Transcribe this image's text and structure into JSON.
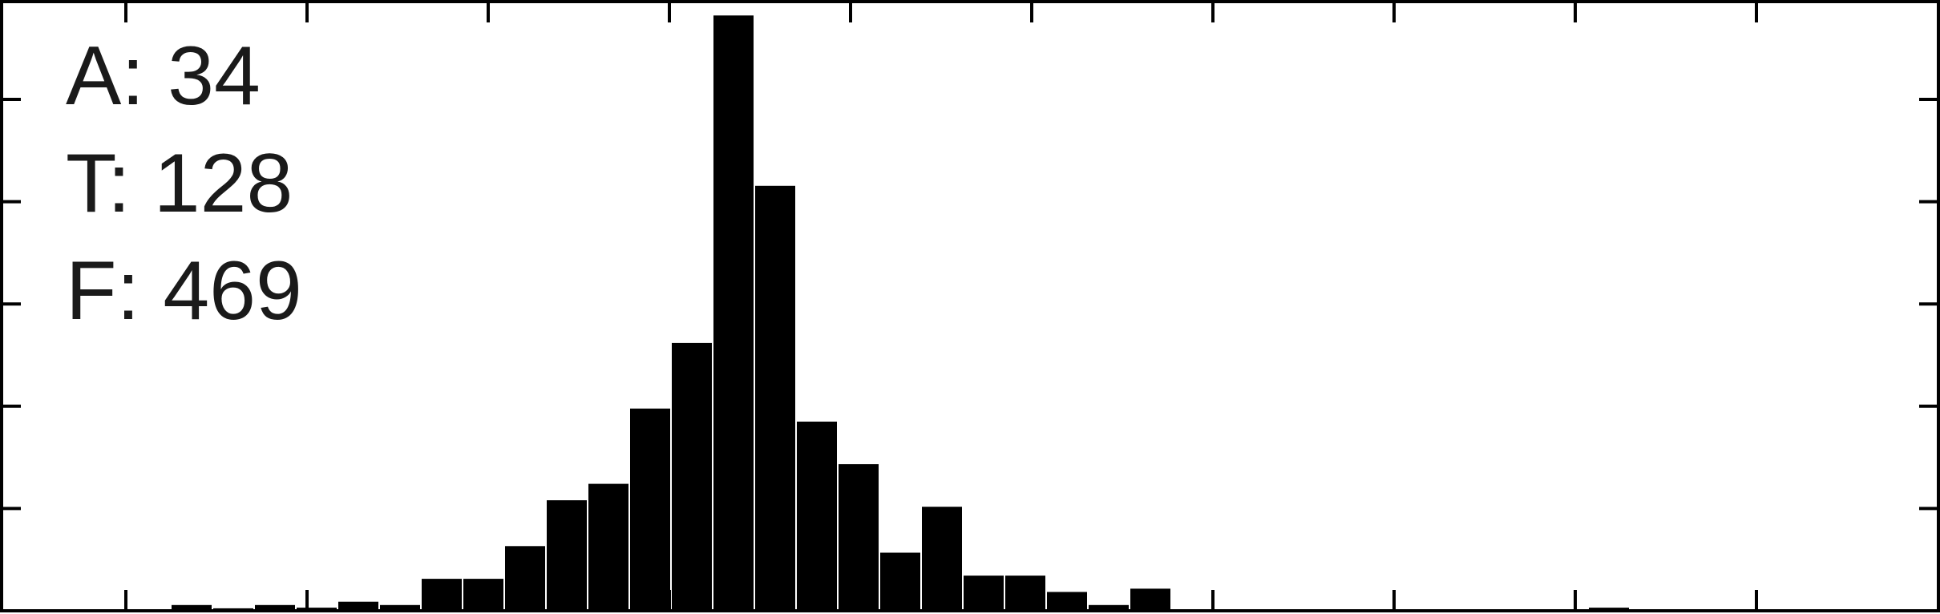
{
  "chart_data": {
    "type": "bar",
    "title": "",
    "xlabel": "",
    "ylabel": "",
    "grid": false,
    "annotations": [
      "A: 34",
      "T: 128",
      "F: 469"
    ],
    "ylim": [
      0,
      93
    ],
    "bars": [
      {
        "x": 2,
        "value": 1.0
      },
      {
        "x": 3,
        "value": 0.5
      },
      {
        "x": 4,
        "value": 1.0
      },
      {
        "x": 5,
        "value": 0.6
      },
      {
        "x": 6,
        "value": 1.5
      },
      {
        "x": 7,
        "value": 1.0
      },
      {
        "x": 8,
        "value": 5.0
      },
      {
        "x": 9,
        "value": 5.0
      },
      {
        "x": 10,
        "value": 10.0
      },
      {
        "x": 11,
        "value": 17.0
      },
      {
        "x": 12,
        "value": 19.5
      },
      {
        "x": 13,
        "value": 31.0
      },
      {
        "x": 14,
        "value": 41.0
      },
      {
        "x": 15,
        "value": 91.0
      },
      {
        "x": 16,
        "value": 65.0
      },
      {
        "x": 17,
        "value": 29.0
      },
      {
        "x": 18,
        "value": 22.5
      },
      {
        "x": 19,
        "value": 9.0
      },
      {
        "x": 20,
        "value": 16.0
      },
      {
        "x": 21,
        "value": 5.5
      },
      {
        "x": 22,
        "value": 5.5
      },
      {
        "x": 23,
        "value": 3.0
      },
      {
        "x": 24,
        "value": 1.0
      },
      {
        "x": 25,
        "value": 3.5
      },
      {
        "x": 36,
        "value": 0.6
      }
    ],
    "colors": {
      "bar_fill": "#000000",
      "bar_edge": "#ffffff",
      "axis": "#000000"
    }
  }
}
